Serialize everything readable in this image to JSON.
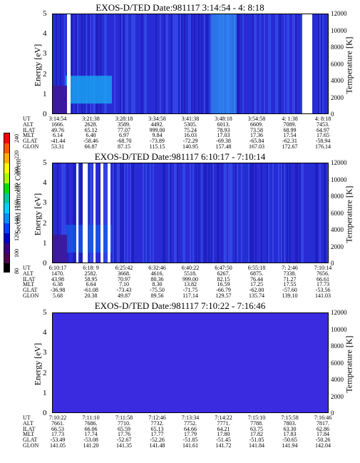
{
  "colorbar": {
    "label": "Second Harmonic Current",
    "ticks": [
      "240",
      "220",
      "200",
      "180",
      "160",
      "140",
      "120",
      "100",
      "80"
    ],
    "colors": [
      "#ff0000",
      "#ff5a00",
      "#ffb000",
      "#ffff00",
      "#aaff00",
      "#00e000",
      "#00c8a0",
      "#00d0ff",
      "#0090ff",
      "#0040ff",
      "#0000c8",
      "#3c0082",
      "#500050",
      "#000000"
    ]
  },
  "chart_data": [
    {
      "type": "heatmap",
      "title": "EXOS-D/TED   Date:981117   3:14:54 - 4: 8:18",
      "ylabel": "Energy [eV]",
      "y2label": "Temperature [K]",
      "ylim": [
        0,
        5
      ],
      "y2lim": [
        0,
        12000
      ],
      "yticks": [
        "5",
        "4",
        "3",
        "2",
        "1",
        "0"
      ],
      "y2ticks": [
        "12000",
        "10000",
        "8000",
        "6000",
        "4000",
        "2000",
        "0"
      ],
      "eph_labels": [
        "UT",
        "ALT",
        "ILAT",
        "MLT",
        "GLAT",
        "GLON"
      ],
      "columns": [
        [
          "3:14:54",
          "1666.",
          "49.76",
          "6.14",
          "-41.44",
          "53.31"
        ],
        [
          "3:21:38",
          "2628.",
          "65.12",
          "6.40",
          "-58.46",
          "66.87"
        ],
        [
          "3:28:18",
          "3589.",
          "77.07",
          "6.97",
          "-68.70",
          "87.15"
        ],
        [
          "3:34:58",
          "4492.",
          "999.00",
          "9.84",
          "-73.89",
          "115.15"
        ],
        [
          "3:41:38",
          "5305.",
          "75.24",
          "16.03",
          "-72.29",
          "140.95"
        ],
        [
          "3:48:18",
          "6013.",
          "78.93",
          "17.03",
          "-69.38",
          "157.48"
        ],
        [
          "3:54:58",
          "6609.",
          "73.58",
          "17.36",
          "-65.84",
          "167.03"
        ],
        [
          "4: 1:38",
          "7089.",
          "68.99",
          "17.54",
          "-62.31",
          "172.67"
        ],
        [
          "4: 8:18",
          "7453.",
          "64.97",
          "17.65",
          "-58.94",
          "176.14"
        ]
      ]
    },
    {
      "type": "heatmap",
      "title": "EXOS-D/TED   Date:981117   6:10:17 - 7:10:14",
      "ylabel": "Energy [eV]",
      "y2label": "Temperature [K]",
      "ylim": [
        0,
        5
      ],
      "y2lim": [
        0,
        12000
      ],
      "yticks": [
        "5",
        "4",
        "3",
        "2",
        "1",
        "0"
      ],
      "y2ticks": [
        "12000",
        "10000",
        "8000",
        "6000",
        "4000",
        "2000",
        "0"
      ],
      "eph_labels": [
        "UT",
        "ALT",
        "ILAT",
        "MLT",
        "GLAT",
        "GLON"
      ],
      "columns": [
        [
          "6:10:17",
          "1470.",
          "43.98",
          "6.38",
          "-36.98",
          "5.68"
        ],
        [
          "6:18: 9",
          "2582.",
          "58.95",
          "6.64",
          "-61.08",
          "20.38"
        ],
        [
          "6:25:42",
          "3668.",
          "70.97",
          "7.10",
          "-73.43",
          "49.87"
        ],
        [
          "6:32:46",
          "4616.",
          "80.36",
          "8.30",
          "-75.50",
          "89.56"
        ],
        [
          "6:40:22",
          "5518.",
          "999.00",
          "13.82",
          "-71.75",
          "117.14"
        ],
        [
          "6:47:50",
          "6267.",
          "82.15",
          "16.59",
          "-66.79",
          "129.57"
        ],
        [
          "6:55:18",
          "6875.",
          "76.44",
          "17.25",
          "-62.00",
          "135.74"
        ],
        [
          "7: 2:46",
          "7338.",
          "71.27",
          "17.55",
          "-57.60",
          "139.10"
        ],
        [
          "7:10:14",
          "7656.",
          "66.61",
          "17.73",
          "-53.56",
          "141.03"
        ]
      ]
    },
    {
      "type": "heatmap",
      "title": "EXOS-D/TED   Date:981117   7:10:22 - 7:16:46",
      "ylabel": "Energy [eV]",
      "y2label": "Temperature [K]",
      "ylim": [
        0,
        5
      ],
      "y2lim": [
        0,
        12000
      ],
      "yticks": [
        "5",
        "4",
        "3",
        "2",
        "1",
        "0"
      ],
      "y2ticks": [
        "12000",
        "10000",
        "8000",
        "6000",
        "4000",
        "2000",
        "0"
      ],
      "eph_labels": [
        "UT",
        "ALT",
        "ILAT",
        "MLT",
        "GLAT",
        "GLON"
      ],
      "columns": [
        [
          "7:10:22",
          "7661.",
          "66.53",
          "17.73",
          "-53.49",
          "141.05"
        ],
        [
          "7:11:10",
          "7686.",
          "66.06",
          "17.74",
          "-53.08",
          "141.20"
        ],
        [
          "7:11:58",
          "7710.",
          "65.59",
          "17.76",
          "-52.67",
          "141.35"
        ],
        [
          "7:12:46",
          "7732.",
          "65.13",
          "17.77",
          "-52.26",
          "141.48"
        ],
        [
          "7:13:34",
          "7752.",
          "64.66",
          "17.79",
          "-51.85",
          "141.61"
        ],
        [
          "7:14:22",
          "7771.",
          "64.21",
          "17.80",
          "-51.45",
          "141.72"
        ],
        [
          "7:15:10",
          "7788.",
          "63.75",
          "17.82",
          "-51.05",
          "141.84"
        ],
        [
          "7:15:58",
          "7803.",
          "63.30",
          "17.83",
          "-50.65",
          "141.94"
        ],
        [
          "7:16:46",
          "7817.",
          "62.86",
          "17.84",
          "-50.26",
          "142.04"
        ]
      ]
    }
  ]
}
